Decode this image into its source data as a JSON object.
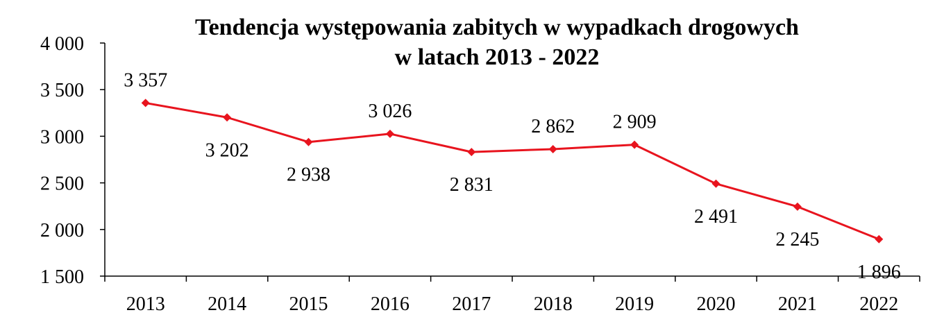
{
  "chart_data": {
    "type": "line",
    "title_lines": [
      "Tendencja występowania zabitych w wypadkach drogowych",
      "w latach 2013 - 2022"
    ],
    "xlabel": "",
    "ylabel": "",
    "categories": [
      "2013",
      "2014",
      "2015",
      "2016",
      "2017",
      "2018",
      "2019",
      "2020",
      "2021",
      "2022"
    ],
    "series": [
      {
        "values": [
          3357,
          3202,
          2938,
          3026,
          2831,
          2862,
          2909,
          2491,
          2245,
          1896
        ],
        "labels": [
          "3 357",
          "3 202",
          "2 938",
          "3 026",
          "2 831",
          "2 862",
          "2 909",
          "2 491",
          "2 245",
          "1 896"
        ],
        "color": "#e8141e"
      }
    ],
    "ylim": [
      1500,
      4000
    ],
    "yticks": [
      1500,
      2000,
      2500,
      3000,
      3500,
      4000
    ],
    "ytick_labels": [
      "1 500",
      "2 000",
      "2 500",
      "3 000",
      "3 500",
      "4 000"
    ],
    "grid": false,
    "legend": "none",
    "axis_color": "#000000"
  }
}
